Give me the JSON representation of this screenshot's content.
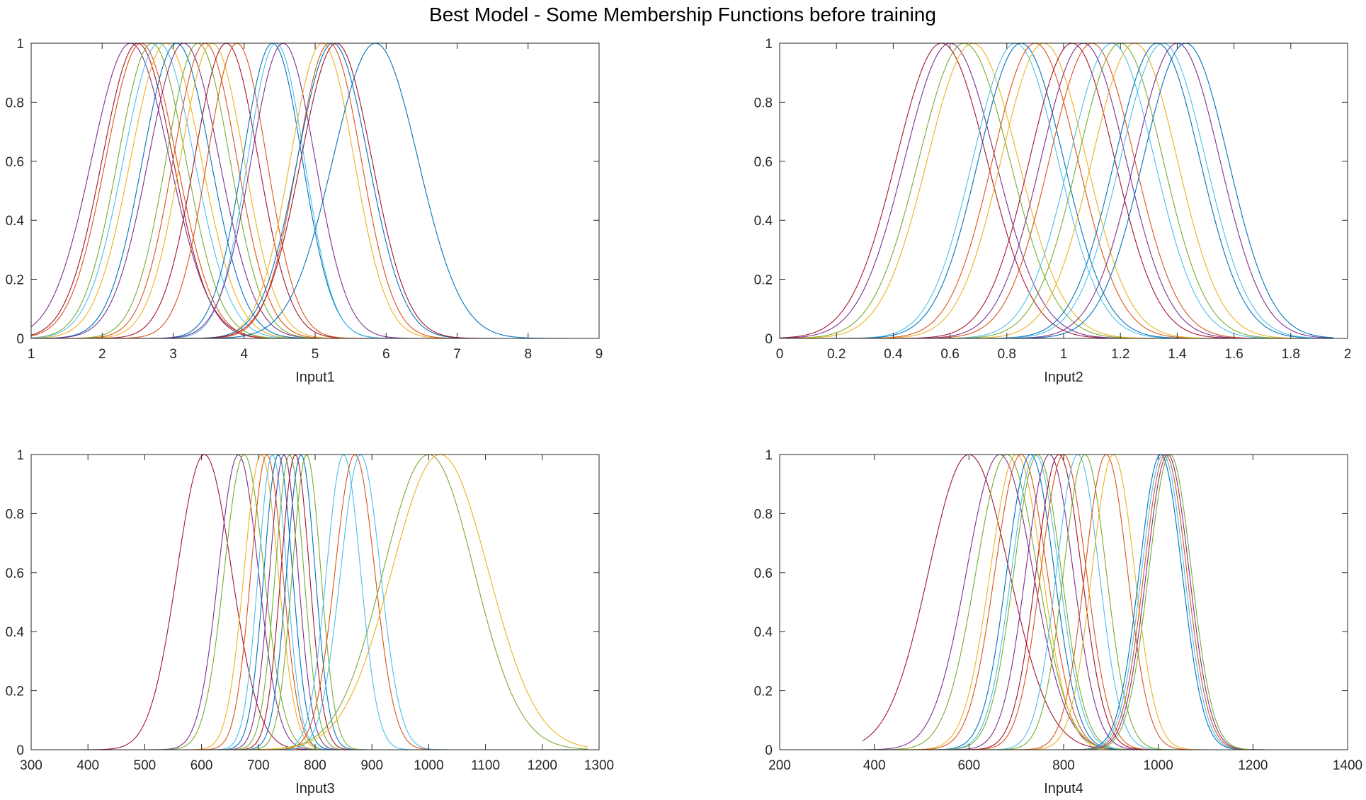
{
  "figure": {
    "title": "Best Model - Some Membership Functions before training"
  },
  "palette": [
    "#0072BD",
    "#D95319",
    "#EDB120",
    "#7E2F8E",
    "#77AC30",
    "#4DBEEE",
    "#A2142F"
  ],
  "chart_data": [
    {
      "type": "line",
      "title": "",
      "xlabel": "Input1",
      "ylabel": "",
      "xlim": [
        1,
        9
      ],
      "ylim": [
        0,
        1
      ],
      "xticks": [
        1,
        2,
        3,
        4,
        5,
        6,
        7,
        8,
        9
      ],
      "yticks": [
        0,
        0.2,
        0.4,
        0.6,
        0.8,
        1
      ],
      "grid": false,
      "legend": "none",
      "curve_shape": "gaussian",
      "x_domain": [
        1,
        9
      ],
      "series": [
        {
          "center": 2.4,
          "sigma": 0.55,
          "color": "#7E2F8E"
        },
        {
          "center": 2.5,
          "sigma": 0.5,
          "color": "#A2142F"
        },
        {
          "center": 2.55,
          "sigma": 0.5,
          "color": "#D95319"
        },
        {
          "center": 2.7,
          "sigma": 0.48,
          "color": "#77AC30"
        },
        {
          "center": 2.8,
          "sigma": 0.5,
          "color": "#4DBEEE"
        },
        {
          "center": 2.9,
          "sigma": 0.5,
          "color": "#EDB120"
        },
        {
          "center": 3.05,
          "sigma": 0.48,
          "color": "#0072BD"
        },
        {
          "center": 3.15,
          "sigma": 0.5,
          "color": "#7E2F8E"
        },
        {
          "center": 3.35,
          "sigma": 0.45,
          "color": "#77AC30"
        },
        {
          "center": 3.45,
          "sigma": 0.45,
          "color": "#D95319"
        },
        {
          "center": 3.55,
          "sigma": 0.45,
          "color": "#EDB120"
        },
        {
          "center": 3.75,
          "sigma": 0.45,
          "color": "#A2142F"
        },
        {
          "center": 3.9,
          "sigma": 0.42,
          "color": "#D95319"
        },
        {
          "center": 4.4,
          "sigma": 0.42,
          "color": "#0072BD"
        },
        {
          "center": 4.45,
          "sigma": 0.4,
          "color": "#4DBEEE"
        },
        {
          "center": 4.55,
          "sigma": 0.45,
          "color": "#7E2F8E"
        },
        {
          "center": 5.1,
          "sigma": 0.45,
          "color": "#EDB120"
        },
        {
          "center": 5.2,
          "sigma": 0.45,
          "color": "#D95319"
        },
        {
          "center": 5.25,
          "sigma": 0.5,
          "color": "#0072BD"
        },
        {
          "center": 5.3,
          "sigma": 0.5,
          "color": "#A2142F"
        },
        {
          "center": 5.85,
          "sigma": 0.6,
          "color": "#0072BD"
        }
      ]
    },
    {
      "type": "line",
      "title": "",
      "xlabel": "Input2",
      "ylabel": "",
      "xlim": [
        0,
        2
      ],
      "ylim": [
        0,
        1
      ],
      "xticks": [
        0,
        0.2,
        0.4,
        0.6,
        0.8,
        1,
        1.2,
        1.4,
        1.6,
        1.8,
        2
      ],
      "yticks": [
        0,
        0.2,
        0.4,
        0.6,
        0.8,
        1
      ],
      "grid": false,
      "legend": "none",
      "curve_shape": "gaussian",
      "x_domain": [
        0,
        1.95
      ],
      "series": [
        {
          "center": 0.57,
          "sigma": 0.16,
          "color": "#A2142F"
        },
        {
          "center": 0.6,
          "sigma": 0.16,
          "color": "#7E2F8E"
        },
        {
          "center": 0.65,
          "sigma": 0.16,
          "color": "#77AC30"
        },
        {
          "center": 0.68,
          "sigma": 0.16,
          "color": "#EDB120"
        },
        {
          "center": 0.83,
          "sigma": 0.15,
          "color": "#4DBEEE"
        },
        {
          "center": 0.85,
          "sigma": 0.15,
          "color": "#0072BD"
        },
        {
          "center": 0.9,
          "sigma": 0.15,
          "color": "#D95319"
        },
        {
          "center": 0.93,
          "sigma": 0.15,
          "color": "#EDB120"
        },
        {
          "center": 1.03,
          "sigma": 0.15,
          "color": "#A2142F"
        },
        {
          "center": 1.07,
          "sigma": 0.15,
          "color": "#7E2F8E"
        },
        {
          "center": 1.1,
          "sigma": 0.15,
          "color": "#D95319"
        },
        {
          "center": 1.17,
          "sigma": 0.15,
          "color": "#4DBEEE"
        },
        {
          "center": 1.2,
          "sigma": 0.15,
          "color": "#77AC30"
        },
        {
          "center": 1.25,
          "sigma": 0.15,
          "color": "#EDB120"
        },
        {
          "center": 1.33,
          "sigma": 0.15,
          "color": "#0072BD"
        },
        {
          "center": 1.35,
          "sigma": 0.15,
          "color": "#4DBEEE"
        },
        {
          "center": 1.4,
          "sigma": 0.15,
          "color": "#7E2F8E"
        },
        {
          "center": 1.43,
          "sigma": 0.15,
          "color": "#0072BD"
        }
      ]
    },
    {
      "type": "line",
      "title": "",
      "xlabel": "Input3",
      "ylabel": "",
      "xlim": [
        300,
        1300
      ],
      "ylim": [
        0,
        1
      ],
      "xticks": [
        300,
        400,
        500,
        600,
        700,
        800,
        900,
        1000,
        1100,
        1200,
        1300
      ],
      "yticks": [
        0,
        0.2,
        0.4,
        0.6,
        0.8,
        1
      ],
      "grid": false,
      "legend": "none",
      "curve_shape": "gaussian",
      "x_domain": [
        300,
        1280
      ],
      "series": [
        {
          "center": 605,
          "sigma": 48,
          "color": "#A2142F"
        },
        {
          "center": 665,
          "sigma": 35,
          "color": "#7E2F8E"
        },
        {
          "center": 675,
          "sigma": 35,
          "color": "#77AC30"
        },
        {
          "center": 705,
          "sigma": 30,
          "color": "#EDB120"
        },
        {
          "center": 715,
          "sigma": 28,
          "color": "#D95319"
        },
        {
          "center": 725,
          "sigma": 25,
          "color": "#4DBEEE"
        },
        {
          "center": 735,
          "sigma": 25,
          "color": "#0072BD"
        },
        {
          "center": 745,
          "sigma": 25,
          "color": "#7E2F8E"
        },
        {
          "center": 755,
          "sigma": 25,
          "color": "#77AC30"
        },
        {
          "center": 765,
          "sigma": 25,
          "color": "#A2142F"
        },
        {
          "center": 775,
          "sigma": 25,
          "color": "#0072BD"
        },
        {
          "center": 785,
          "sigma": 25,
          "color": "#77AC30"
        },
        {
          "center": 850,
          "sigma": 30,
          "color": "#4DBEEE"
        },
        {
          "center": 870,
          "sigma": 35,
          "color": "#D95319"
        },
        {
          "center": 880,
          "sigma": 35,
          "color": "#4DBEEE"
        },
        {
          "center": 1000,
          "sigma": 80,
          "color": "#77AC30"
        },
        {
          "center": 1020,
          "sigma": 85,
          "color": "#EDB120"
        }
      ]
    },
    {
      "type": "line",
      "title": "",
      "xlabel": "Input4",
      "ylabel": "",
      "xlim": [
        200,
        1400
      ],
      "ylim": [
        0,
        1
      ],
      "xticks": [
        200,
        400,
        600,
        800,
        1000,
        1200,
        1400
      ],
      "yticks": [
        0,
        0.2,
        0.4,
        0.6,
        0.8,
        1
      ],
      "grid": false,
      "legend": "none",
      "curve_shape": "gaussian",
      "x_domain": [
        375,
        1320
      ],
      "series": [
        {
          "center": 600,
          "sigma": 85,
          "color": "#A2142F"
        },
        {
          "center": 665,
          "sigma": 70,
          "color": "#7E2F8E"
        },
        {
          "center": 680,
          "sigma": 65,
          "color": "#77AC30"
        },
        {
          "center": 700,
          "sigma": 55,
          "color": "#EDB120"
        },
        {
          "center": 710,
          "sigma": 55,
          "color": "#D95319"
        },
        {
          "center": 730,
          "sigma": 50,
          "color": "#0072BD"
        },
        {
          "center": 740,
          "sigma": 50,
          "color": "#4DBEEE"
        },
        {
          "center": 745,
          "sigma": 50,
          "color": "#77AC30"
        },
        {
          "center": 770,
          "sigma": 50,
          "color": "#7E2F8E"
        },
        {
          "center": 790,
          "sigma": 48,
          "color": "#A2142F"
        },
        {
          "center": 800,
          "sigma": 48,
          "color": "#D95319"
        },
        {
          "center": 830,
          "sigma": 45,
          "color": "#4DBEEE"
        },
        {
          "center": 845,
          "sigma": 45,
          "color": "#77AC30"
        },
        {
          "center": 890,
          "sigma": 45,
          "color": "#D95319"
        },
        {
          "center": 905,
          "sigma": 45,
          "color": "#EDB120"
        },
        {
          "center": 1005,
          "sigma": 45,
          "color": "#0072BD"
        },
        {
          "center": 1010,
          "sigma": 45,
          "color": "#4DBEEE"
        },
        {
          "center": 1015,
          "sigma": 45,
          "color": "#D95319"
        },
        {
          "center": 1020,
          "sigma": 45,
          "color": "#7E2F8E"
        },
        {
          "center": 1025,
          "sigma": 45,
          "color": "#77AC30"
        }
      ]
    }
  ]
}
